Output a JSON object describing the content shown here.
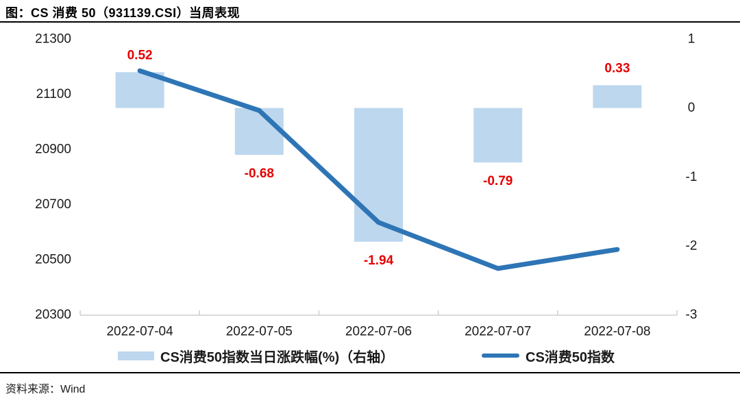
{
  "header": {
    "title": "图：CS 消费 50（931139.CSI）当周表现"
  },
  "legend": {
    "bar_label": "CS消费50指数当日涨跌幅(%)（右轴）",
    "line_label": "CS消费50指数"
  },
  "footer": {
    "source_label": "资料来源：Wind"
  },
  "colors": {
    "bar_fill": "#BDD7EE",
    "line_stroke": "#2E75B6",
    "data_label": "#E60000",
    "axis_line": "#CDCDCD",
    "tick_text": "#1a1a1a"
  },
  "chart_data": {
    "type": "combo-bar-line",
    "title": "图：CS 消费 50（931139.CSI）当周表现",
    "categories": [
      "2022-07-04",
      "2022-07-05",
      "2022-07-06",
      "2022-07-07",
      "2022-07-08"
    ],
    "series": [
      {
        "name": "CS消费50指数当日涨跌幅(%)（右轴）",
        "type": "bar",
        "axis": "right",
        "values": [
          0.52,
          -0.68,
          -1.94,
          -0.79,
          0.33
        ],
        "data_labels": [
          "0.52",
          "-0.68",
          "-1.94",
          "-0.79",
          "0.33"
        ]
      },
      {
        "name": "CS消费50指数",
        "type": "line",
        "axis": "left",
        "values": [
          21185,
          21041,
          20635,
          20468,
          20537
        ]
      }
    ],
    "left_axis": {
      "min": 20300,
      "max": 21300,
      "ticks": [
        21300,
        21100,
        20900,
        20700,
        20500,
        20300
      ]
    },
    "right_axis": {
      "min": -3,
      "max": 1,
      "ticks": [
        1,
        0,
        -1,
        -2,
        -3
      ]
    },
    "grid": false,
    "legend_position": "bottom"
  }
}
